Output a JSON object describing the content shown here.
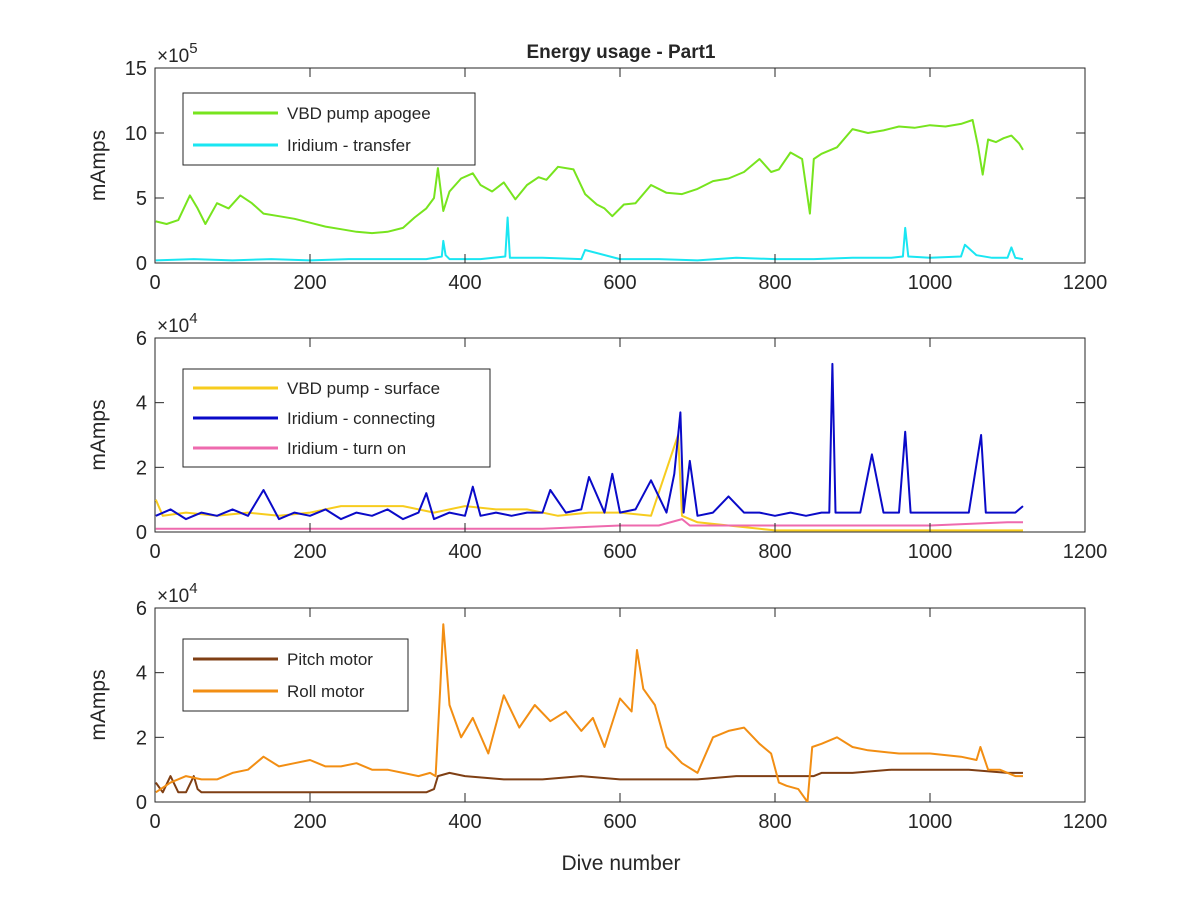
{
  "figure": {
    "title": "Energy usage - Part1",
    "xlabel": "Dive number"
  },
  "chart_data": [
    {
      "type": "line",
      "ylabel": "mAmps",
      "exponent": "5",
      "xlim": [
        0,
        1200
      ],
      "ylim": [
        0,
        15
      ],
      "xticks": [
        "0",
        "200",
        "400",
        "600",
        "800",
        "1000",
        "1200"
      ],
      "yticks": [
        "0",
        "5",
        "10",
        "15"
      ],
      "legend_position": "top-left",
      "series": [
        {
          "name": "VBD pump apogee",
          "color": "#77e41e",
          "x": [
            1,
            15,
            30,
            45,
            55,
            65,
            80,
            95,
            110,
            125,
            140,
            160,
            180,
            200,
            220,
            240,
            260,
            280,
            300,
            320,
            335,
            350,
            360,
            365,
            372,
            380,
            395,
            410,
            420,
            435,
            450,
            465,
            480,
            495,
            505,
            520,
            540,
            555,
            570,
            580,
            590,
            605,
            620,
            640,
            660,
            680,
            700,
            720,
            740,
            760,
            780,
            795,
            805,
            820,
            835,
            845,
            850,
            860,
            880,
            900,
            920,
            940,
            960,
            980,
            1000,
            1020,
            1040,
            1055,
            1062,
            1068,
            1075,
            1085,
            1095,
            1105,
            1115,
            1120
          ],
          "values": [
            3.2,
            3.0,
            3.3,
            5.2,
            4.2,
            3.0,
            4.6,
            4.2,
            5.2,
            4.6,
            3.8,
            3.6,
            3.4,
            3.1,
            2.8,
            2.6,
            2.4,
            2.3,
            2.4,
            2.7,
            3.5,
            4.2,
            5.0,
            7.3,
            4.0,
            5.5,
            6.5,
            6.9,
            6.0,
            5.5,
            6.2,
            4.9,
            6.0,
            6.6,
            6.4,
            7.4,
            7.2,
            5.3,
            4.5,
            4.2,
            3.6,
            4.5,
            4.6,
            6.0,
            5.4,
            5.3,
            5.7,
            6.3,
            6.5,
            7.0,
            8.0,
            7.0,
            7.2,
            8.5,
            8.0,
            3.8,
            8.0,
            8.4,
            8.9,
            10.3,
            10.0,
            10.2,
            10.5,
            10.4,
            10.6,
            10.5,
            10.7,
            11.0,
            9.0,
            6.8,
            9.5,
            9.3,
            9.6,
            9.8,
            9.2,
            8.7
          ]
        },
        {
          "name": "Iridium - transfer",
          "color": "#1ae6f2",
          "x": [
            1,
            50,
            100,
            150,
            200,
            250,
            300,
            350,
            370,
            372,
            375,
            380,
            420,
            452,
            455,
            458,
            500,
            550,
            555,
            600,
            650,
            700,
            750,
            800,
            850,
            900,
            950,
            965,
            968,
            972,
            1000,
            1040,
            1045,
            1060,
            1080,
            1100,
            1105,
            1110,
            1120
          ],
          "values": [
            0.2,
            0.3,
            0.2,
            0.3,
            0.2,
            0.3,
            0.3,
            0.3,
            0.5,
            1.7,
            0.6,
            0.3,
            0.3,
            0.5,
            3.5,
            0.4,
            0.4,
            0.3,
            1.0,
            0.3,
            0.3,
            0.2,
            0.4,
            0.3,
            0.3,
            0.4,
            0.4,
            0.5,
            2.7,
            0.5,
            0.4,
            0.5,
            1.4,
            0.6,
            0.4,
            0.4,
            1.2,
            0.4,
            0.3
          ]
        }
      ]
    },
    {
      "type": "line",
      "ylabel": "mAmps",
      "exponent": "4",
      "xlim": [
        0,
        1200
      ],
      "ylim": [
        0,
        6
      ],
      "xticks": [
        "0",
        "200",
        "400",
        "600",
        "800",
        "1000",
        "1200"
      ],
      "yticks": [
        "0",
        "2",
        "4",
        "6"
      ],
      "legend_position": "top-left",
      "series": [
        {
          "name": "VBD pump - surface",
          "color": "#f7cc1e",
          "x": [
            1,
            10,
            40,
            80,
            120,
            160,
            200,
            240,
            280,
            320,
            360,
            400,
            440,
            480,
            520,
            560,
            600,
            640,
            675,
            680,
            700,
            740,
            780,
            800,
            850,
            900,
            950,
            1000,
            1050,
            1100,
            1120
          ],
          "values": [
            1.0,
            0.5,
            0.6,
            0.5,
            0.6,
            0.5,
            0.6,
            0.8,
            0.8,
            0.8,
            0.6,
            0.8,
            0.7,
            0.7,
            0.5,
            0.6,
            0.6,
            0.5,
            3.0,
            0.5,
            0.3,
            0.2,
            0.1,
            0.05,
            0.05,
            0.05,
            0.05,
            0.05,
            0.05,
            0.05,
            0.05
          ]
        },
        {
          "name": "Iridium - connecting",
          "color": "#0a0ac8",
          "x": [
            1,
            20,
            40,
            60,
            80,
            100,
            120,
            140,
            160,
            180,
            200,
            220,
            240,
            260,
            280,
            300,
            320,
            340,
            350,
            360,
            380,
            400,
            410,
            420,
            440,
            460,
            480,
            500,
            510,
            530,
            550,
            560,
            580,
            590,
            600,
            620,
            640,
            660,
            670,
            678,
            682,
            690,
            700,
            720,
            740,
            760,
            780,
            800,
            820,
            840,
            860,
            870,
            874,
            878,
            890,
            910,
            925,
            940,
            960,
            968,
            975,
            990,
            1010,
            1030,
            1050,
            1066,
            1072,
            1090,
            1110,
            1120
          ],
          "values": [
            0.5,
            0.7,
            0.4,
            0.6,
            0.5,
            0.7,
            0.5,
            1.3,
            0.4,
            0.6,
            0.5,
            0.7,
            0.4,
            0.6,
            0.5,
            0.7,
            0.4,
            0.6,
            1.2,
            0.4,
            0.6,
            0.5,
            1.4,
            0.5,
            0.6,
            0.5,
            0.6,
            0.6,
            1.3,
            0.6,
            0.7,
            1.7,
            0.6,
            1.8,
            0.6,
            0.7,
            1.6,
            0.6,
            1.8,
            3.7,
            0.6,
            2.2,
            0.5,
            0.6,
            1.1,
            0.6,
            0.6,
            0.5,
            0.6,
            0.5,
            0.6,
            0.6,
            5.2,
            0.6,
            0.6,
            0.6,
            2.4,
            0.6,
            0.6,
            3.1,
            0.6,
            0.6,
            0.6,
            0.6,
            0.6,
            3.0,
            0.6,
            0.6,
            0.6,
            0.8
          ]
        },
        {
          "name": "Iridium - turn on",
          "color": "#ee6aae",
          "x": [
            1,
            100,
            200,
            300,
            400,
            500,
            600,
            650,
            680,
            690,
            700,
            800,
            900,
            1000,
            1100,
            1120
          ],
          "values": [
            0.1,
            0.1,
            0.1,
            0.1,
            0.1,
            0.1,
            0.2,
            0.2,
            0.4,
            0.2,
            0.2,
            0.2,
            0.2,
            0.2,
            0.3,
            0.3
          ]
        }
      ]
    },
    {
      "type": "line",
      "ylabel": "mAmps",
      "exponent": "4",
      "xlim": [
        0,
        1200
      ],
      "ylim": [
        0,
        6
      ],
      "xticks": [
        "0",
        "200",
        "400",
        "600",
        "800",
        "1000",
        "1200"
      ],
      "yticks": [
        "0",
        "2",
        "4",
        "6"
      ],
      "legend_position": "top-left",
      "series": [
        {
          "name": "Pitch motor",
          "color": "#7f3f14",
          "x": [
            1,
            10,
            20,
            30,
            40,
            50,
            55,
            60,
            80,
            100,
            150,
            200,
            250,
            300,
            350,
            360,
            365,
            380,
            400,
            450,
            500,
            550,
            600,
            650,
            700,
            750,
            800,
            850,
            860,
            900,
            950,
            1000,
            1050,
            1100,
            1120
          ],
          "values": [
            0.6,
            0.3,
            0.8,
            0.3,
            0.3,
            0.8,
            0.4,
            0.3,
            0.3,
            0.3,
            0.3,
            0.3,
            0.3,
            0.3,
            0.3,
            0.4,
            0.8,
            0.9,
            0.8,
            0.7,
            0.7,
            0.8,
            0.7,
            0.7,
            0.7,
            0.8,
            0.8,
            0.8,
            0.9,
            0.9,
            1.0,
            1.0,
            1.0,
            0.9,
            0.9
          ]
        },
        {
          "name": "Roll motor",
          "color": "#f28e13",
          "x": [
            1,
            20,
            40,
            60,
            80,
            100,
            120,
            140,
            160,
            180,
            200,
            220,
            240,
            260,
            280,
            300,
            320,
            340,
            355,
            362,
            368,
            372,
            380,
            395,
            410,
            430,
            450,
            470,
            490,
            510,
            530,
            550,
            565,
            580,
            600,
            615,
            622,
            630,
            645,
            660,
            680,
            700,
            720,
            740,
            760,
            780,
            795,
            805,
            815,
            830,
            842,
            848,
            860,
            880,
            900,
            920,
            960,
            1000,
            1040,
            1060,
            1065,
            1075,
            1090,
            1110,
            1120
          ],
          "values": [
            0.3,
            0.6,
            0.8,
            0.7,
            0.7,
            0.9,
            1.0,
            1.4,
            1.1,
            1.2,
            1.3,
            1.1,
            1.1,
            1.2,
            1.0,
            1.0,
            0.9,
            0.8,
            0.9,
            0.8,
            3.5,
            5.5,
            3.0,
            2.0,
            2.6,
            1.5,
            3.3,
            2.3,
            3.0,
            2.5,
            2.8,
            2.2,
            2.6,
            1.7,
            3.2,
            2.8,
            4.7,
            3.5,
            3.0,
            1.7,
            1.2,
            0.9,
            2.0,
            2.2,
            2.3,
            1.8,
            1.5,
            0.6,
            0.5,
            0.4,
            0.0,
            1.7,
            1.8,
            2.0,
            1.7,
            1.6,
            1.5,
            1.5,
            1.4,
            1.3,
            1.7,
            1.0,
            1.0,
            0.8,
            0.8
          ]
        }
      ]
    }
  ]
}
